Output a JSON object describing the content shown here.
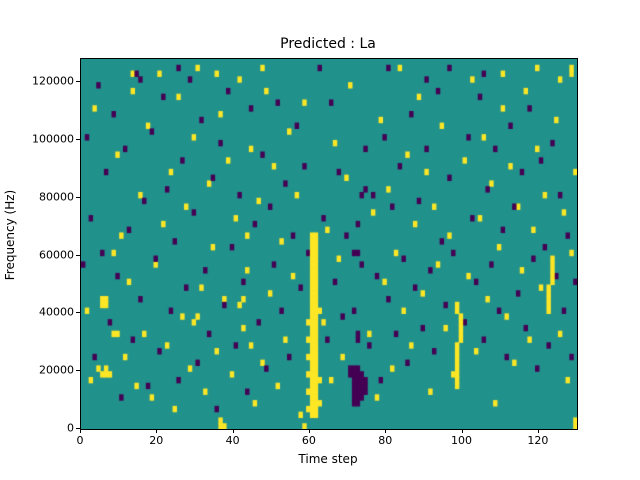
{
  "title": "Predicted : La",
  "chart_data": {
    "type": "heatmap",
    "title": "Predicted : La",
    "xlabel": "Time step",
    "ylabel": "Frequency (Hz)",
    "xlim": [
      0,
      130
    ],
    "ylim": [
      0,
      128000
    ],
    "x_ticks": [
      0,
      20,
      40,
      60,
      80,
      100,
      120
    ],
    "y_ticks": [
      0,
      20000,
      40000,
      60000,
      80000,
      100000,
      120000
    ],
    "grid_cols": 130,
    "grid_rows": 64,
    "legend": "none",
    "grid": false,
    "colors": {
      "background": "#21918c",
      "high": "#fde725",
      "low": "#440154"
    },
    "notable_features": [
      "dense yellow vertical band near time step 60 from 0 to ~70000 Hz",
      "purple cluster near time steps 71-74 around 10000-20000 Hz",
      "yellow column near time step 98-99 around 15000-45000 Hz",
      "yellow column near time step 122-123 around 40000-60000 Hz"
    ],
    "yellow_runs": [
      [
        60,
        2,
        33
      ],
      [
        61,
        2,
        33
      ],
      [
        98,
        7,
        14
      ],
      [
        99,
        15,
        19
      ],
      [
        98,
        20,
        21
      ],
      [
        122,
        20,
        24
      ],
      [
        123,
        25,
        29
      ],
      [
        128,
        61,
        62
      ],
      [
        129,
        0,
        1
      ]
    ],
    "purple_runs": [
      [
        71,
        4,
        10
      ],
      [
        72,
        4,
        10
      ],
      [
        73,
        5,
        9
      ],
      [
        74,
        6,
        8
      ],
      [
        70,
        9,
        10
      ],
      [
        72,
        15,
        16
      ]
    ],
    "yellow_cells": [
      [
        1,
        20
      ],
      [
        2,
        8
      ],
      [
        3,
        55
      ],
      [
        4,
        10
      ],
      [
        5,
        9
      ],
      [
        6,
        9
      ],
      [
        6,
        10
      ],
      [
        5,
        21
      ],
      [
        5,
        22
      ],
      [
        6,
        21
      ],
      [
        6,
        22
      ],
      [
        7,
        9
      ],
      [
        8,
        16
      ],
      [
        9,
        16
      ],
      [
        8,
        30
      ],
      [
        9,
        47
      ],
      [
        10,
        33
      ],
      [
        11,
        12
      ],
      [
        12,
        25
      ],
      [
        13,
        58
      ],
      [
        13,
        61
      ],
      [
        14,
        7
      ],
      [
        15,
        40
      ],
      [
        16,
        16
      ],
      [
        17,
        52
      ],
      [
        18,
        5
      ],
      [
        19,
        28
      ],
      [
        20,
        61
      ],
      [
        21,
        35
      ],
      [
        22,
        14
      ],
      [
        23,
        44
      ],
      [
        24,
        3
      ],
      [
        25,
        57
      ],
      [
        26,
        19
      ],
      [
        27,
        38
      ],
      [
        28,
        10
      ],
      [
        29,
        18
      ],
      [
        29,
        50
      ],
      [
        30,
        19
      ],
      [
        30,
        62
      ],
      [
        31,
        24
      ],
      [
        32,
        6
      ],
      [
        33,
        42
      ],
      [
        34,
        31
      ],
      [
        35,
        13
      ],
      [
        35,
        61
      ],
      [
        36,
        0
      ],
      [
        36,
        1
      ],
      [
        37,
        0
      ],
      [
        36,
        54
      ],
      [
        37,
        22
      ],
      [
        38,
        46
      ],
      [
        39,
        9
      ],
      [
        40,
        36
      ],
      [
        41,
        21
      ],
      [
        41,
        60
      ],
      [
        42,
        17
      ],
      [
        42,
        22
      ],
      [
        43,
        27
      ],
      [
        43,
        33
      ],
      [
        44,
        14
      ],
      [
        44,
        48
      ],
      [
        45,
        4
      ],
      [
        46,
        39
      ],
      [
        47,
        11
      ],
      [
        47,
        62
      ],
      [
        48,
        58
      ],
      [
        49,
        23
      ],
      [
        50,
        45
      ],
      [
        51,
        7
      ],
      [
        52,
        32
      ],
      [
        53,
        15
      ],
      [
        54,
        51
      ],
      [
        55,
        26
      ],
      [
        56,
        40
      ],
      [
        57,
        2
      ],
      [
        58,
        0
      ],
      [
        58,
        56
      ],
      [
        59,
        3
      ],
      [
        59,
        6
      ],
      [
        59,
        9
      ],
      [
        59,
        12
      ],
      [
        59,
        15
      ],
      [
        59,
        18
      ],
      [
        62,
        4
      ],
      [
        62,
        8
      ],
      [
        62,
        20
      ],
      [
        63,
        18
      ],
      [
        64,
        34
      ],
      [
        65,
        8
      ],
      [
        66,
        49
      ],
      [
        67,
        29
      ],
      [
        68,
        12
      ],
      [
        69,
        43
      ],
      [
        70,
        59
      ],
      [
        75,
        16
      ],
      [
        76,
        37
      ],
      [
        77,
        5
      ],
      [
        78,
        53
      ],
      [
        79,
        25
      ],
      [
        80,
        41
      ],
      [
        81,
        10
      ],
      [
        82,
        30
      ],
      [
        83,
        62
      ],
      [
        84,
        20
      ],
      [
        85,
        47
      ],
      [
        86,
        14
      ],
      [
        87,
        35
      ],
      [
        88,
        57
      ],
      [
        89,
        23
      ],
      [
        90,
        44
      ],
      [
        91,
        6
      ],
      [
        92,
        38
      ],
      [
        93,
        28
      ],
      [
        94,
        52
      ],
      [
        95,
        17
      ],
      [
        96,
        33
      ],
      [
        97,
        9
      ],
      [
        100,
        46
      ],
      [
        101,
        26
      ],
      [
        102,
        60
      ],
      [
        103,
        13
      ],
      [
        104,
        36
      ],
      [
        105,
        50
      ],
      [
        106,
        22
      ],
      [
        107,
        42
      ],
      [
        108,
        4
      ],
      [
        109,
        31
      ],
      [
        110,
        55
      ],
      [
        110,
        61
      ],
      [
        111,
        19
      ],
      [
        112,
        45
      ],
      [
        113,
        11
      ],
      [
        114,
        38
      ],
      [
        115,
        27
      ],
      [
        116,
        58
      ],
      [
        117,
        15
      ],
      [
        118,
        34
      ],
      [
        119,
        48
      ],
      [
        119,
        62
      ],
      [
        120,
        24
      ],
      [
        121,
        40
      ],
      [
        124,
        53
      ],
      [
        125,
        16
      ],
      [
        125,
        60
      ],
      [
        126,
        37
      ],
      [
        127,
        8
      ],
      [
        128,
        30
      ],
      [
        129,
        44
      ]
    ],
    "purple_cells": [
      [
        0,
        28
      ],
      [
        1,
        50
      ],
      [
        2,
        36
      ],
      [
        3,
        12
      ],
      [
        4,
        59
      ],
      [
        5,
        30
      ],
      [
        6,
        44
      ],
      [
        7,
        18
      ],
      [
        8,
        54
      ],
      [
        9,
        26
      ],
      [
        10,
        5
      ],
      [
        11,
        48
      ],
      [
        12,
        34
      ],
      [
        13,
        15
      ],
      [
        14,
        61
      ],
      [
        15,
        22
      ],
      [
        15,
        60
      ],
      [
        16,
        39
      ],
      [
        17,
        7
      ],
      [
        18,
        51
      ],
      [
        19,
        29
      ],
      [
        20,
        13
      ],
      [
        21,
        57
      ],
      [
        22,
        41
      ],
      [
        23,
        20
      ],
      [
        24,
        32
      ],
      [
        25,
        8
      ],
      [
        25,
        62
      ],
      [
        26,
        46
      ],
      [
        27,
        24
      ],
      [
        28,
        60
      ],
      [
        29,
        37
      ],
      [
        30,
        11
      ],
      [
        31,
        53
      ],
      [
        32,
        27
      ],
      [
        33,
        16
      ],
      [
        34,
        43
      ],
      [
        35,
        3
      ],
      [
        36,
        49
      ],
      [
        37,
        21
      ],
      [
        38,
        58
      ],
      [
        39,
        31
      ],
      [
        40,
        14
      ],
      [
        41,
        40
      ],
      [
        42,
        25
      ],
      [
        43,
        6
      ],
      [
        44,
        55
      ],
      [
        45,
        35
      ],
      [
        46,
        18
      ],
      [
        47,
        47
      ],
      [
        48,
        10
      ],
      [
        49,
        38
      ],
      [
        50,
        28
      ],
      [
        51,
        56
      ],
      [
        52,
        20
      ],
      [
        53,
        42
      ],
      [
        54,
        12
      ],
      [
        55,
        33
      ],
      [
        56,
        52
      ],
      [
        57,
        24
      ],
      [
        58,
        45
      ],
      [
        59,
        30
      ],
      [
        62,
        62
      ],
      [
        63,
        36
      ],
      [
        64,
        15
      ],
      [
        65,
        56
      ],
      [
        66,
        25
      ],
      [
        67,
        44
      ],
      [
        68,
        19
      ],
      [
        69,
        33
      ],
      [
        71,
        20
      ],
      [
        71,
        30
      ],
      [
        72,
        30
      ],
      [
        72,
        35
      ],
      [
        73,
        28
      ],
      [
        73,
        40
      ],
      [
        74,
        41
      ],
      [
        74,
        48
      ],
      [
        75,
        14
      ],
      [
        76,
        40
      ],
      [
        77,
        26
      ],
      [
        78,
        8
      ],
      [
        79,
        50
      ],
      [
        80,
        22
      ],
      [
        80,
        62
      ],
      [
        81,
        38
      ],
      [
        82,
        16
      ],
      [
        83,
        45
      ],
      [
        84,
        29
      ],
      [
        85,
        11
      ],
      [
        86,
        54
      ],
      [
        87,
        24
      ],
      [
        88,
        39
      ],
      [
        89,
        17
      ],
      [
        90,
        48
      ],
      [
        90,
        60
      ],
      [
        91,
        27
      ],
      [
        92,
        13
      ],
      [
        93,
        58
      ],
      [
        94,
        32
      ],
      [
        95,
        21
      ],
      [
        96,
        43
      ],
      [
        96,
        62
      ],
      [
        97,
        30
      ],
      [
        100,
        18
      ],
      [
        101,
        50
      ],
      [
        102,
        36
      ],
      [
        103,
        25
      ],
      [
        104,
        57
      ],
      [
        105,
        15
      ],
      [
        105,
        61
      ],
      [
        106,
        41
      ],
      [
        107,
        28
      ],
      [
        108,
        48
      ],
      [
        109,
        20
      ],
      [
        110,
        34
      ],
      [
        111,
        12
      ],
      [
        112,
        52
      ],
      [
        113,
        38
      ],
      [
        114,
        23
      ],
      [
        115,
        44
      ],
      [
        116,
        17
      ],
      [
        117,
        55
      ],
      [
        118,
        29
      ],
      [
        119,
        10
      ],
      [
        120,
        46
      ],
      [
        121,
        31
      ],
      [
        122,
        14
      ],
      [
        123,
        49
      ],
      [
        124,
        26
      ],
      [
        125,
        40
      ],
      [
        126,
        20
      ],
      [
        127,
        33
      ],
      [
        128,
        12
      ],
      [
        129,
        25
      ]
    ]
  }
}
